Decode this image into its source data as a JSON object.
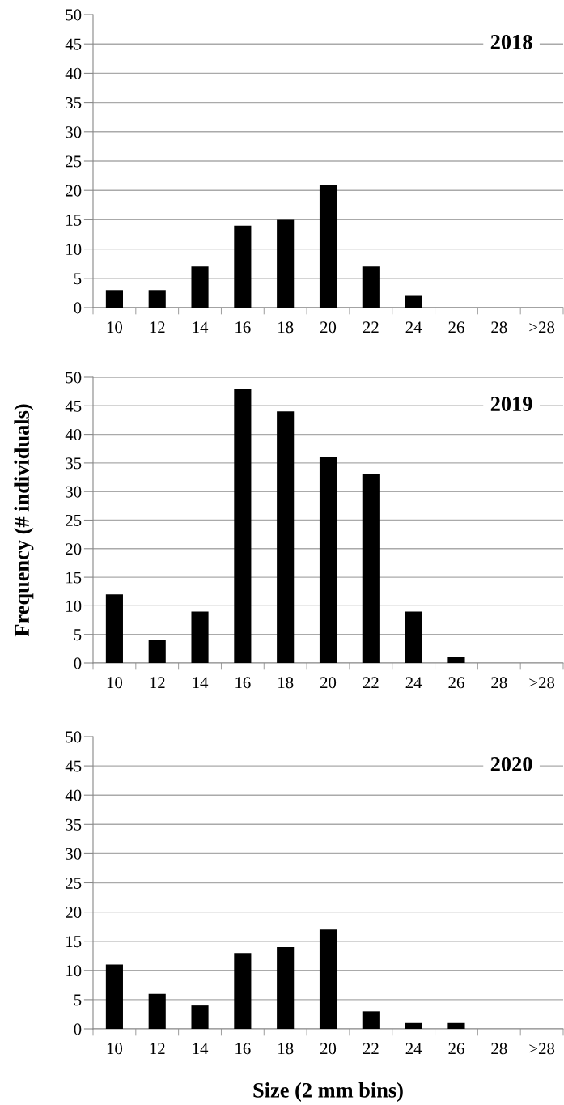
{
  "chart_data": [
    {
      "type": "bar",
      "title": "2018",
      "categories": [
        "10",
        "12",
        "14",
        "16",
        "18",
        "20",
        "22",
        "24",
        "26",
        "28",
        ">28"
      ],
      "values": [
        3,
        3,
        7,
        14,
        15,
        21,
        7,
        2,
        0,
        0,
        0
      ],
      "color": "#000000",
      "ylim": [
        0,
        50
      ],
      "yticks": [
        0,
        5,
        10,
        15,
        20,
        25,
        30,
        35,
        40,
        45,
        50
      ],
      "grid": "y"
    },
    {
      "type": "bar",
      "title": "2019",
      "ylabel": "Frequency (# individuals)",
      "categories": [
        "10",
        "12",
        "14",
        "16",
        "18",
        "20",
        "22",
        "24",
        "26",
        "28",
        ">28"
      ],
      "values": [
        12,
        4,
        9,
        48,
        44,
        36,
        33,
        9,
        1,
        0,
        0
      ],
      "color": "#000000",
      "ylim": [
        0,
        50
      ],
      "yticks": [
        0,
        5,
        10,
        15,
        20,
        25,
        30,
        35,
        40,
        45,
        50
      ],
      "grid": "y"
    },
    {
      "type": "bar",
      "title": "2020",
      "xlabel": "Size (2 mm bins)",
      "categories": [
        "10",
        "12",
        "14",
        "16",
        "18",
        "20",
        "22",
        "24",
        "26",
        "28",
        ">28"
      ],
      "values": [
        11,
        6,
        4,
        13,
        14,
        17,
        3,
        1,
        1,
        0,
        0
      ],
      "color": "#000000",
      "ylim": [
        0,
        50
      ],
      "yticks": [
        0,
        5,
        10,
        15,
        20,
        25,
        30,
        35,
        40,
        45,
        50
      ],
      "grid": "y"
    }
  ]
}
